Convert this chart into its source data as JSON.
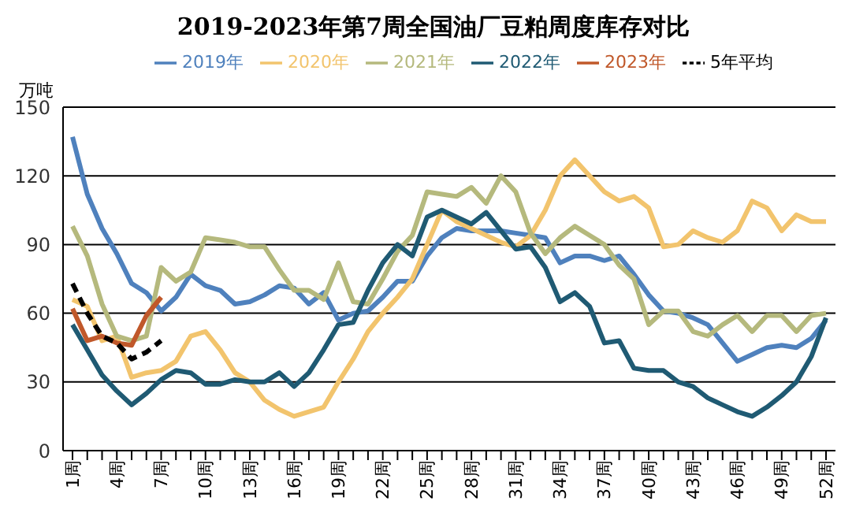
{
  "chart_data": {
    "type": "line",
    "title": "2019-2023年第7周全国油厂豆粕周度库存对比",
    "ylabel": "万吨",
    "categories": [
      "1周",
      null,
      null,
      "4周",
      null,
      null,
      "7周",
      null,
      null,
      "10周",
      null,
      null,
      "13周",
      null,
      null,
      "16周",
      null,
      null,
      "19周",
      null,
      null,
      "22周",
      null,
      null,
      "25周",
      null,
      null,
      "28周",
      null,
      null,
      "31周",
      null,
      null,
      "34周",
      null,
      null,
      "37周",
      null,
      null,
      "40周",
      null,
      null,
      "43周",
      null,
      null,
      "46周",
      null,
      null,
      "49周",
      null,
      null,
      "52周"
    ],
    "series": [
      {
        "name": "2019年",
        "color": "#4f81bd",
        "values": [
          137,
          112,
          97,
          86,
          73,
          69,
          61,
          67,
          77,
          72,
          70,
          64,
          65,
          68,
          72,
          71,
          64,
          69,
          57,
          60,
          61,
          67,
          74,
          74,
          85,
          93,
          97,
          96,
          96,
          96,
          95,
          94,
          93,
          82,
          85,
          85,
          83,
          85,
          77,
          68,
          61,
          60,
          58,
          55,
          47,
          39,
          42,
          45,
          46,
          45,
          49,
          57
        ]
      },
      {
        "name": "2020年",
        "color": "#f2c46d",
        "values": [
          66,
          63,
          48,
          50,
          32,
          34,
          35,
          39,
          50,
          52,
          44,
          34,
          30,
          22,
          18,
          15,
          17,
          19,
          30,
          40,
          52,
          60,
          67,
          75,
          90,
          105,
          100,
          97,
          94,
          91,
          89,
          94,
          105,
          120,
          127,
          120,
          113,
          109,
          111,
          106,
          89,
          90,
          96,
          93,
          91,
          96,
          109,
          106,
          96,
          103,
          100,
          100
        ]
      },
      {
        "name": "2021年",
        "color": "#b5b97d",
        "values": [
          98,
          85,
          64,
          50,
          48,
          50,
          80,
          74,
          78,
          93,
          92,
          91,
          89,
          89,
          79,
          70,
          70,
          66,
          82,
          65,
          64,
          75,
          87,
          94,
          113,
          112,
          111,
          115,
          108,
          120,
          113,
          95,
          86,
          93,
          98,
          94,
          90,
          81,
          75,
          55,
          61,
          61,
          52,
          50,
          55,
          59,
          52,
          59,
          59,
          52,
          59,
          60
        ]
      },
      {
        "name": "2022年",
        "color": "#1f5a73",
        "values": [
          55,
          44,
          33,
          26,
          20,
          25,
          31,
          35,
          34,
          29,
          29,
          31,
          30,
          30,
          34,
          28,
          34,
          44,
          55,
          56,
          70,
          82,
          90,
          85,
          102,
          105,
          102,
          99,
          104,
          96,
          88,
          89,
          80,
          65,
          69,
          63,
          47,
          48,
          36,
          35,
          35,
          30,
          28,
          23,
          20,
          17,
          15,
          19,
          24,
          30,
          41,
          58
        ]
      },
      {
        "name": "2023年",
        "color": "#c0582a",
        "values": [
          62,
          48,
          50,
          47,
          46,
          59,
          67,
          null,
          null,
          null,
          null,
          null,
          null,
          null,
          null,
          null,
          null,
          null,
          null,
          null,
          null,
          null,
          null,
          null,
          null,
          null,
          null,
          null,
          null,
          null,
          null,
          null,
          null,
          null,
          null,
          null,
          null,
          null,
          null,
          null,
          null,
          null,
          null,
          null,
          null,
          null,
          null,
          null,
          null,
          null,
          null,
          null
        ]
      },
      {
        "name": "5年平均",
        "color": "#000000",
        "line_style": "dashed",
        "values": [
          73,
          60,
          50,
          47,
          40,
          43,
          48,
          null,
          null,
          null,
          null,
          null,
          null,
          null,
          null,
          null,
          null,
          null,
          null,
          null,
          null,
          null,
          null,
          null,
          null,
          null,
          null,
          null,
          null,
          null,
          null,
          null,
          null,
          null,
          null,
          null,
          null,
          null,
          null,
          null,
          null,
          null,
          null,
          null,
          null,
          null,
          null,
          null,
          null,
          null,
          null,
          null
        ]
      }
    ],
    "ylim": [
      0,
      150
    ],
    "yticks": [
      0,
      30,
      60,
      90,
      120,
      150
    ],
    "grid": "y",
    "legend": "top",
    "marker": "none"
  }
}
